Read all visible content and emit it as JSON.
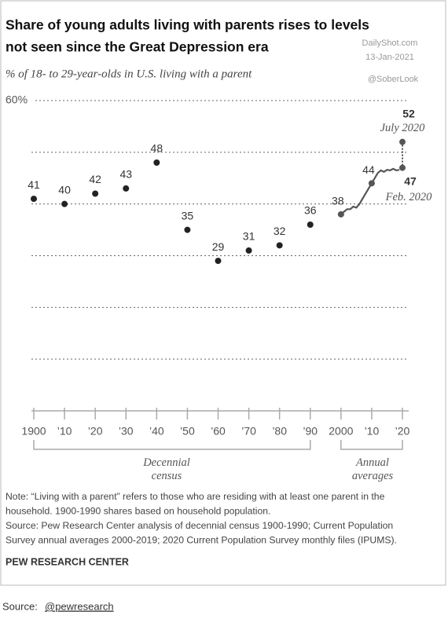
{
  "chart_data": {
    "type": "line",
    "title": [
      "Share of young adults living with parents rises to levels",
      "not seen since the Great Depression era"
    ],
    "watermark": [
      "DailyShot.com",
      "13-Jan-2021",
      "@SoberLook"
    ],
    "subtitle": "% of 18- to 29-year-olds in U.S. living with a parent",
    "xlim": [
      1900,
      2020
    ],
    "ylim": [
      0,
      60
    ],
    "xticks": [
      1900,
      {
        "value": 1910,
        "label": "’10"
      },
      {
        "value": 1920,
        "label": "’20"
      },
      {
        "value": 1930,
        "label": "’30"
      },
      {
        "value": 1940,
        "label": "’40"
      },
      {
        "value": 1950,
        "label": "’50"
      },
      {
        "value": 1960,
        "label": "’60"
      },
      {
        "value": 1970,
        "label": "’70"
      },
      {
        "value": 1980,
        "label": "’80"
      },
      {
        "value": 1990,
        "label": "’90"
      },
      2000,
      {
        "value": 2010,
        "label": "’10"
      },
      {
        "value": 2020,
        "label": "’20"
      }
    ],
    "yticks": [
      {
        "value": 60,
        "label": "60%"
      }
    ],
    "ygrid": [
      10,
      20,
      30,
      40,
      50
    ],
    "series": [
      {
        "name": "Decennial census",
        "color": "#222222",
        "style": "points",
        "x": [
          1900,
          1910,
          1920,
          1930,
          1940,
          1950,
          1960,
          1970,
          1980,
          1990
        ],
        "values": [
          41,
          40,
          42,
          43,
          48,
          35,
          29,
          31,
          32,
          36
        ]
      },
      {
        "name": "Annual averages",
        "color": "#555555",
        "style": "line",
        "x": [
          2000,
          2001,
          2002,
          2003,
          2004,
          2005,
          2006,
          2007,
          2008,
          2009,
          2010,
          2011,
          2012,
          2013,
          2014,
          2015,
          2016,
          2017,
          2018,
          2019
        ],
        "values": [
          38,
          38.5,
          39,
          39,
          39.5,
          39.3,
          40,
          41,
          42,
          43,
          44,
          45,
          46,
          46.5,
          46.2,
          46.6,
          46.5,
          46.8,
          46.5,
          46.6
        ],
        "value_labels": [
          "38",
          null,
          null,
          null,
          null,
          null,
          null,
          null,
          null,
          null,
          "44",
          null,
          null,
          null,
          null,
          null,
          null,
          null,
          null,
          null
        ]
      }
    ],
    "highlights": [
      {
        "label": "July 2020",
        "x": 2020,
        "value": 52
      },
      {
        "label": "Feb. 2020",
        "x": 2020,
        "value": 47
      }
    ],
    "note": [
      "Note: “Living with a parent” refers to those who are residing with at least one parent in the",
      "household. 1900-1990 shares based on household population."
    ],
    "source": [
      "Source: Pew Research Center analysis of decennial census 1900-1990; Current Population",
      "Survey annual averages 2000-2019; 2020 Current Population Survey monthly files (IPUMS)."
    ],
    "publisher": "PEW RESEARCH CENTER",
    "credit": {
      "prefix": "Source:",
      "handle": "@pewresearch"
    }
  }
}
